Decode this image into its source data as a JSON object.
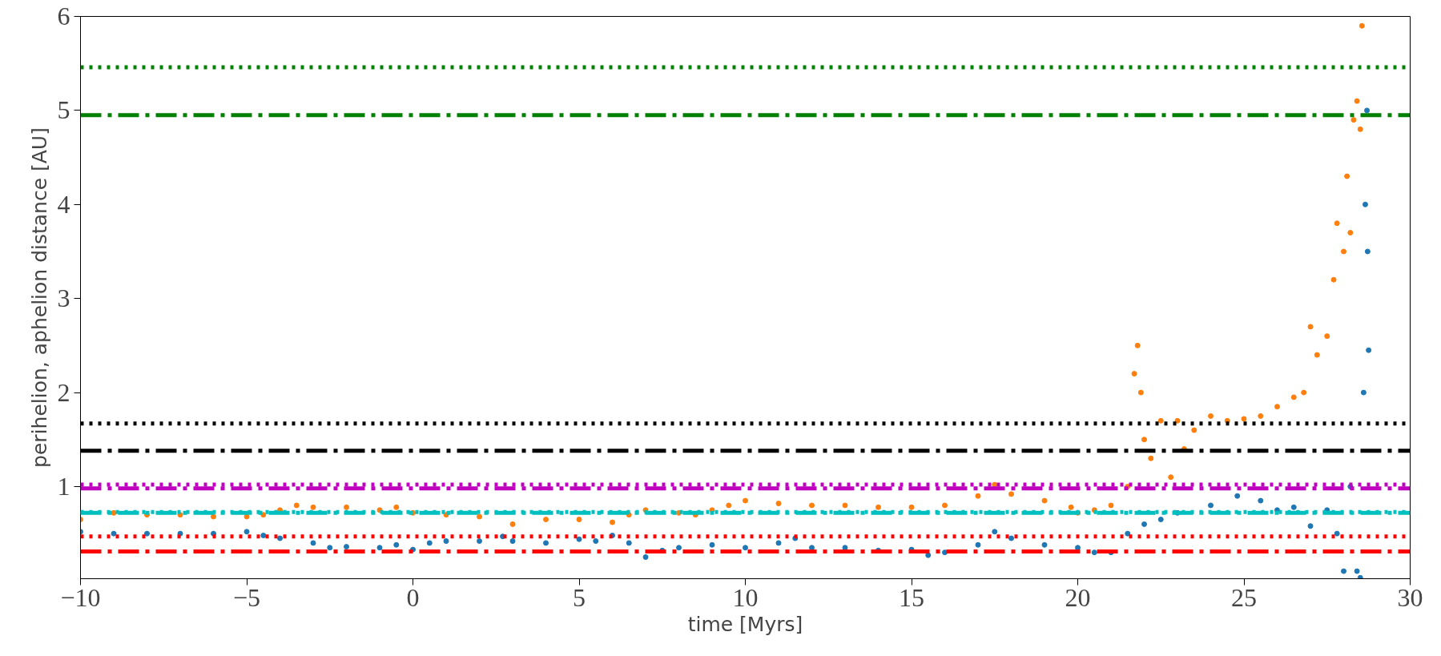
{
  "chart_data": {
    "type": "scatter",
    "xlabel": "time [Myrs]",
    "ylabel": "perihelion, aphelion distance [AU]",
    "xlim": [
      -10,
      30
    ],
    "xticks": [
      {
        "value": -10,
        "label": "−10"
      },
      {
        "value": -5,
        "label": "−5"
      },
      0,
      5,
      10,
      15,
      20,
      25,
      30
    ],
    "ylim": [
      0.02,
      6
    ],
    "yticks": [
      1,
      2,
      3,
      4,
      5,
      6
    ],
    "grid": false,
    "marker": "circle",
    "series": [
      {
        "color": "#ff7f0e",
        "x": [
          -10,
          -9,
          -8,
          -7,
          -6,
          -5,
          -4.5,
          -4,
          -3.5,
          -3,
          -2,
          -1,
          -0.5,
          0,
          1,
          2,
          3,
          4,
          5,
          6,
          6.5,
          7,
          8,
          8.5,
          9,
          9.5,
          10,
          11,
          12,
          13,
          14,
          15,
          16,
          17,
          17.5,
          18,
          19,
          19.8,
          20,
          20.5,
          21,
          21.5,
          21.7,
          21.8,
          21.9,
          22,
          22.2,
          22.5,
          22.8,
          23,
          23.2,
          23.5,
          24,
          24.5,
          25,
          25.5,
          26,
          26.5,
          26.8,
          27,
          27.2,
          27.5,
          27.7,
          27.8,
          28,
          28.1,
          28.2,
          28.3,
          28.4,
          28.5,
          28.55
        ],
        "values": [
          0.65,
          0.72,
          0.7,
          0.7,
          0.68,
          0.68,
          0.7,
          0.75,
          0.8,
          0.78,
          0.78,
          0.75,
          0.78,
          0.72,
          0.7,
          0.68,
          0.6,
          0.65,
          0.65,
          0.62,
          0.7,
          0.75,
          0.72,
          0.7,
          0.75,
          0.8,
          0.85,
          0.82,
          0.8,
          0.8,
          0.78,
          0.78,
          0.8,
          0.9,
          1.02,
          0.92,
          0.85,
          0.78,
          0.72,
          0.75,
          0.8,
          1.0,
          2.2,
          2.5,
          2.0,
          1.5,
          1.3,
          1.7,
          1.1,
          1.7,
          1.4,
          1.6,
          1.75,
          1.7,
          1.72,
          1.75,
          1.85,
          1.95,
          2.0,
          2.7,
          2.4,
          2.6,
          3.2,
          3.8,
          3.5,
          4.3,
          3.7,
          4.9,
          5.1,
          4.8,
          5.9
        ]
      },
      {
        "color": "#1f77b4",
        "x": [
          -10,
          -9,
          -8,
          -7,
          -6,
          -5,
          -4.5,
          -4,
          -3,
          -2.5,
          -2,
          -1,
          -0.5,
          0,
          0.5,
          1,
          2,
          2.7,
          3,
          4,
          5,
          5.5,
          6,
          6.5,
          7,
          7.5,
          8,
          9,
          10,
          11,
          11.5,
          12,
          13,
          14,
          15,
          15.5,
          16,
          17,
          17.5,
          18,
          19,
          20,
          20.5,
          21,
          21.5,
          22,
          22.5,
          23,
          24,
          24.8,
          25.5,
          26,
          26.5,
          27,
          27.5,
          27.8,
          28,
          28.2,
          28.4,
          28.5,
          28.6,
          28.65,
          28.7,
          28.72,
          28.75
        ],
        "values": [
          0.52,
          0.5,
          0.5,
          0.5,
          0.5,
          0.52,
          0.48,
          0.45,
          0.4,
          0.35,
          0.36,
          0.35,
          0.38,
          0.33,
          0.4,
          0.42,
          0.42,
          0.47,
          0.42,
          0.4,
          0.44,
          0.42,
          0.48,
          0.4,
          0.25,
          0.32,
          0.35,
          0.38,
          0.35,
          0.4,
          0.45,
          0.35,
          0.35,
          0.32,
          0.33,
          0.27,
          0.3,
          0.38,
          0.52,
          0.45,
          0.38,
          0.35,
          0.3,
          0.3,
          0.5,
          0.6,
          0.65,
          0.72,
          0.8,
          0.9,
          0.85,
          0.75,
          0.78,
          0.58,
          0.75,
          0.5,
          0.1,
          1.0,
          0.1,
          0.03,
          2.0,
          4.0,
          5.0,
          3.5,
          2.45
        ]
      }
    ],
    "ref_lines": [
      {
        "axis": "y",
        "value": 5.46,
        "color": "#008000",
        "line_style": "dotted"
      },
      {
        "axis": "y",
        "value": 4.95,
        "color": "#008000",
        "line_style": "dashdot"
      },
      {
        "axis": "y",
        "value": 1.67,
        "color": "#000000",
        "line_style": "dotted"
      },
      {
        "axis": "y",
        "value": 1.38,
        "color": "#000000",
        "line_style": "dashdot"
      },
      {
        "axis": "y",
        "value": 1.02,
        "color": "#bf00bf",
        "line_style": "dotted"
      },
      {
        "axis": "y",
        "value": 0.98,
        "color": "#bf00bf",
        "line_style": "dashdot"
      },
      {
        "axis": "y",
        "value": 0.73,
        "color": "#00bfbf",
        "line_style": "dotted"
      },
      {
        "axis": "y",
        "value": 0.72,
        "color": "#00bfbf",
        "line_style": "dashdot"
      },
      {
        "axis": "y",
        "value": 0.47,
        "color": "#ff0000",
        "line_style": "dotted"
      },
      {
        "axis": "y",
        "value": 0.31,
        "color": "#ff0000",
        "line_style": "dashdot"
      }
    ]
  }
}
